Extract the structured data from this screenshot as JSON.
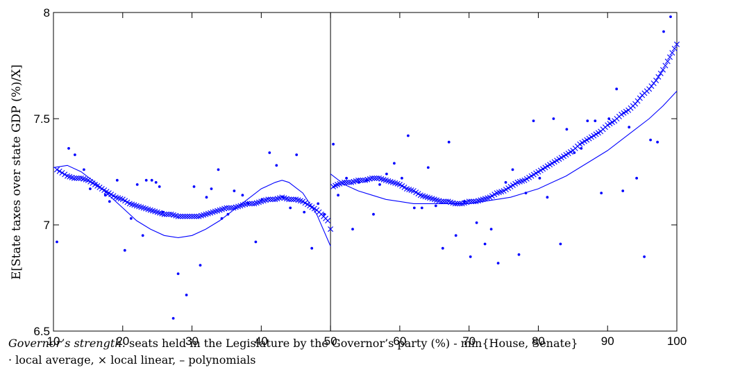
{
  "chart_data": {
    "type": "scatter",
    "xlim": [
      10,
      100
    ],
    "ylim": [
      6.5,
      8
    ],
    "xticks": [
      10,
      20,
      30,
      40,
      50,
      60,
      70,
      80,
      90,
      100
    ],
    "yticks": [
      6.5,
      7,
      7.5,
      8
    ],
    "ylabel": "E[State taxes over state GDP (%)/X]",
    "cutoff": 50,
    "grid": false,
    "color": "#0000ff",
    "series": [
      {
        "name": "local average",
        "marker": "dot",
        "x": [
          10.5,
          12.2,
          13.1,
          14.4,
          15.3,
          17.5,
          18.1,
          19.2,
          20.3,
          21.2,
          22.1,
          22.9,
          23.4,
          24.2,
          24.8,
          25.3,
          25.8,
          27.3,
          28.0,
          29.2,
          30.3,
          31.2,
          32.1,
          32.8,
          33.8,
          34.3,
          35.2,
          36.1,
          37.3,
          38.1,
          39.2,
          40.1,
          41.2,
          42.2,
          43.1,
          44.2,
          45.1,
          46.2,
          47.3,
          48.2,
          49.1,
          50.4,
          51.1,
          52.3,
          53.2,
          54.1,
          55.2,
          56.2,
          57.1,
          58.1,
          59.2,
          60.3,
          61.2,
          62.1,
          63.2,
          64.1,
          65.2,
          66.2,
          67.1,
          68.1,
          69.3,
          70.2,
          71.1,
          72.3,
          73.2,
          74.2,
          75.3,
          76.3,
          77.2,
          78.2,
          79.3,
          80.2,
          81.3,
          82.2,
          83.2,
          84.1,
          85.2,
          86.2,
          87.1,
          88.2,
          89.1,
          90.2,
          91.3,
          92.2,
          93.1,
          94.2,
          95.3,
          96.2,
          97.2,
          98.1,
          99.1
        ],
        "y": [
          6.92,
          7.36,
          7.33,
          7.26,
          7.17,
          7.14,
          7.11,
          7.21,
          6.88,
          7.03,
          7.19,
          6.95,
          7.21,
          7.21,
          7.2,
          7.18,
          7.06,
          6.56,
          6.77,
          6.67,
          7.18,
          6.81,
          7.13,
          7.17,
          7.26,
          7.03,
          7.05,
          7.16,
          7.14,
          7.1,
          6.92,
          7.12,
          7.34,
          7.28,
          7.13,
          7.08,
          7.33,
          7.06,
          6.89,
          7.1,
          7.05,
          7.38,
          7.14,
          7.22,
          6.98,
          7.2,
          7.21,
          7.05,
          7.19,
          7.24,
          7.29,
          7.22,
          7.42,
          7.08,
          7.08,
          7.27,
          7.09,
          6.89,
          7.39,
          6.95,
          7.11,
          6.85,
          7.01,
          6.91,
          6.98,
          6.82,
          7.2,
          7.26,
          6.86,
          7.15,
          7.49,
          7.22,
          7.13,
          7.5,
          6.91,
          7.45,
          7.34,
          7.36,
          7.49,
          7.49,
          7.15,
          7.5,
          7.64,
          7.16,
          7.46,
          7.22,
          6.85,
          7.4,
          7.39,
          7.91,
          7.98
        ]
      },
      {
        "name": "local linear",
        "marker": "x",
        "left": {
          "x": [
            10.5,
            12,
            13,
            14,
            15,
            16,
            17,
            18,
            19,
            20,
            21,
            22,
            23,
            24,
            25,
            26,
            27,
            28,
            29,
            30,
            31,
            32,
            33,
            34,
            35,
            36,
            37,
            38,
            39,
            40,
            41,
            42,
            43,
            44,
            45,
            46,
            47,
            48,
            49,
            49.6,
            50
          ],
          "y": [
            7.26,
            7.23,
            7.22,
            7.22,
            7.21,
            7.19,
            7.17,
            7.15,
            7.13,
            7.12,
            7.1,
            7.09,
            7.08,
            7.07,
            7.06,
            7.05,
            7.05,
            7.04,
            7.04,
            7.04,
            7.04,
            7.05,
            7.06,
            7.07,
            7.08,
            7.08,
            7.09,
            7.1,
            7.1,
            7.11,
            7.12,
            7.12,
            7.13,
            7.12,
            7.12,
            7.11,
            7.09,
            7.07,
            7.04,
            7.02,
            6.98
          ]
        },
        "right": {
          "x": [
            50.4,
            51,
            52,
            53,
            54,
            55,
            56,
            57,
            58,
            59,
            60,
            61,
            62,
            63,
            64,
            65,
            66,
            67,
            68,
            69,
            70,
            71,
            72,
            73,
            74,
            75,
            76,
            77,
            78,
            79,
            80,
            81,
            82,
            83,
            84,
            85,
            86,
            87,
            88,
            89,
            90,
            91,
            92,
            93,
            94,
            95,
            96,
            97,
            98,
            99,
            100
          ],
          "y": [
            7.18,
            7.19,
            7.2,
            7.2,
            7.21,
            7.21,
            7.22,
            7.22,
            7.21,
            7.2,
            7.19,
            7.17,
            7.16,
            7.14,
            7.13,
            7.12,
            7.11,
            7.11,
            7.1,
            7.1,
            7.11,
            7.11,
            7.12,
            7.13,
            7.15,
            7.16,
            7.18,
            7.2,
            7.21,
            7.23,
            7.25,
            7.27,
            7.29,
            7.31,
            7.33,
            7.35,
            7.38,
            7.4,
            7.42,
            7.44,
            7.47,
            7.49,
            7.52,
            7.54,
            7.57,
            7.61,
            7.64,
            7.68,
            7.73,
            7.79,
            7.85
          ]
        }
      },
      {
        "name": "polynomials",
        "marker": "line",
        "left": {
          "x": [
            10,
            12,
            14,
            16,
            18,
            20,
            22,
            24,
            26,
            28,
            30,
            32,
            34,
            36,
            38,
            40,
            42,
            43,
            44,
            46,
            48,
            50
          ],
          "y": [
            7.27,
            7.28,
            7.25,
            7.2,
            7.14,
            7.08,
            7.02,
            6.98,
            6.95,
            6.94,
            6.95,
            6.98,
            7.02,
            7.07,
            7.12,
            7.17,
            7.2,
            7.21,
            7.2,
            7.15,
            7.05,
            6.9
          ]
        },
        "right": {
          "x": [
            50,
            52,
            54,
            56,
            58,
            60,
            62,
            64,
            66,
            68,
            70,
            72,
            74,
            76,
            78,
            80,
            82,
            84,
            86,
            88,
            90,
            92,
            94,
            96,
            98,
            100
          ],
          "y": [
            7.24,
            7.19,
            7.16,
            7.14,
            7.12,
            7.11,
            7.1,
            7.1,
            7.1,
            7.1,
            7.1,
            7.11,
            7.12,
            7.13,
            7.15,
            7.17,
            7.2,
            7.23,
            7.27,
            7.31,
            7.35,
            7.4,
            7.45,
            7.5,
            7.56,
            7.63
          ]
        }
      }
    ]
  },
  "caption": {
    "line1_italic": "Governor’s strength",
    "line1_rest": ": seats held in the Legislature by the Governor’s party (%) - min{House,  Senate}",
    "line2": "· local average, × local linear, – polynomials"
  }
}
